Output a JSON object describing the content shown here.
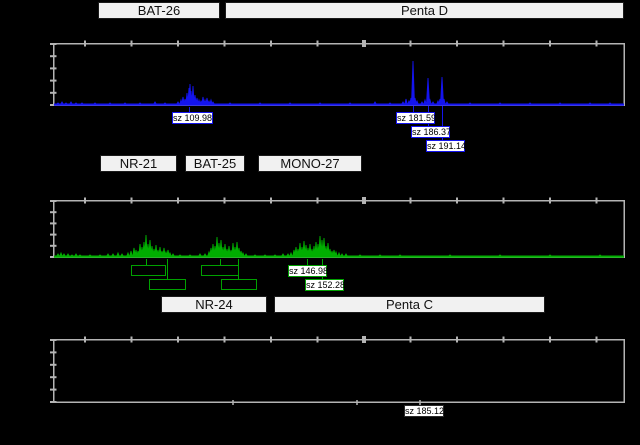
{
  "colors": {
    "background": "#000000",
    "panel_border": "#b4b4b4",
    "trace_blue": "#1414ee",
    "trace_green": "#00ae00",
    "marker_box_bg": "#f1f1f1",
    "marker_box_border": "#1b1b1b",
    "size_label_bg": "#ffffff",
    "size_label_text": "#000000"
  },
  "markers": {
    "row1": [
      {
        "label": "BAT-26"
      },
      {
        "label": "Penta D"
      }
    ],
    "row2": [
      {
        "label": "NR-21"
      },
      {
        "label": "BAT-25"
      },
      {
        "label": "MONO-27"
      }
    ],
    "row3": [
      {
        "label": "NR-24"
      },
      {
        "label": "Penta C"
      }
    ]
  },
  "sizes": {
    "top": [
      {
        "text": "sz 109.98"
      },
      {
        "text": "sz 181.59"
      },
      {
        "text": "sz 186.37"
      },
      {
        "text": "sz 191.14"
      }
    ],
    "middle": [
      {
        "text": "sz 146.98"
      },
      {
        "text": "sz 152.28"
      }
    ],
    "bottom": [
      {
        "text": "sz 185.12"
      }
    ]
  },
  "chart_data": [
    {
      "type": "area",
      "name": "electropherogram-top-blue",
      "color": "#1414ee",
      "has_trace": true,
      "size_calls": [
        109.98,
        181.59,
        186.37,
        191.14
      ],
      "peaks": [
        [
          58,
          1
        ],
        [
          62,
          2
        ],
        [
          66,
          1
        ],
        [
          71,
          2
        ],
        [
          76,
          1
        ],
        [
          82,
          1
        ],
        [
          95,
          1
        ],
        [
          110,
          1
        ],
        [
          125,
          1
        ],
        [
          140,
          1
        ],
        [
          155,
          2
        ],
        [
          165,
          1
        ],
        [
          178,
          2
        ],
        [
          181,
          4
        ],
        [
          183,
          7
        ],
        [
          185,
          5
        ],
        [
          187,
          11
        ],
        [
          189,
          16
        ],
        [
          190,
          20
        ],
        [
          191,
          13
        ],
        [
          193,
          18
        ],
        [
          195,
          9
        ],
        [
          197,
          6
        ],
        [
          199,
          4
        ],
        [
          201,
          3
        ],
        [
          203,
          7
        ],
        [
          205,
          4
        ],
        [
          207,
          6
        ],
        [
          209,
          3
        ],
        [
          211,
          4
        ],
        [
          213,
          2
        ],
        [
          230,
          1
        ],
        [
          260,
          1
        ],
        [
          290,
          1
        ],
        [
          320,
          1
        ],
        [
          350,
          1
        ],
        [
          375,
          2
        ],
        [
          390,
          1
        ],
        [
          403,
          2
        ],
        [
          406,
          5
        ],
        [
          409,
          3
        ],
        [
          411,
          6
        ],
        [
          413,
          43,
          3
        ],
        [
          415,
          6
        ],
        [
          417,
          3
        ],
        [
          422,
          2
        ],
        [
          425,
          4
        ],
        [
          428,
          26,
          3
        ],
        [
          430,
          4
        ],
        [
          433,
          2
        ],
        [
          438,
          3
        ],
        [
          440,
          5
        ],
        [
          442,
          27,
          3
        ],
        [
          444,
          5
        ],
        [
          447,
          2
        ],
        [
          470,
          1
        ],
        [
          500,
          1
        ],
        [
          530,
          1
        ],
        [
          560,
          1
        ],
        [
          590,
          1
        ],
        [
          610,
          1
        ]
      ]
    },
    {
      "type": "area",
      "name": "electropherogram-middle-green",
      "color": "#00ae00",
      "has_trace": true,
      "size_calls": [
        146.98,
        152.28
      ],
      "peaks": [
        [
          58,
          2
        ],
        [
          61,
          3
        ],
        [
          64,
          2
        ],
        [
          68,
          2
        ],
        [
          72,
          1
        ],
        [
          76,
          2
        ],
        [
          80,
          1
        ],
        [
          90,
          1
        ],
        [
          100,
          1
        ],
        [
          108,
          2
        ],
        [
          113,
          2
        ],
        [
          118,
          3
        ],
        [
          122,
          2
        ],
        [
          128,
          3
        ],
        [
          131,
          5
        ],
        [
          134,
          8
        ],
        [
          136,
          6
        ],
        [
          138,
          5
        ],
        [
          140,
          12
        ],
        [
          142,
          9
        ],
        [
          144,
          14
        ],
        [
          146,
          21
        ],
        [
          148,
          12
        ],
        [
          150,
          16
        ],
        [
          152,
          10
        ],
        [
          154,
          7
        ],
        [
          156,
          11
        ],
        [
          158,
          6
        ],
        [
          160,
          9
        ],
        [
          162,
          5
        ],
        [
          164,
          8
        ],
        [
          166,
          4
        ],
        [
          168,
          6
        ],
        [
          170,
          3
        ],
        [
          173,
          2
        ],
        [
          180,
          1
        ],
        [
          190,
          1
        ],
        [
          200,
          2
        ],
        [
          205,
          2
        ],
        [
          209,
          4
        ],
        [
          211,
          8
        ],
        [
          213,
          12
        ],
        [
          215,
          10
        ],
        [
          217,
          19
        ],
        [
          219,
          13
        ],
        [
          221,
          16
        ],
        [
          223,
          9
        ],
        [
          225,
          12
        ],
        [
          227,
          7
        ],
        [
          229,
          10
        ],
        [
          231,
          6
        ],
        [
          233,
          13
        ],
        [
          235,
          9
        ],
        [
          237,
          14
        ],
        [
          239,
          8
        ],
        [
          241,
          5
        ],
        [
          243,
          3
        ],
        [
          246,
          2
        ],
        [
          255,
          1
        ],
        [
          265,
          1
        ],
        [
          275,
          1
        ],
        [
          283,
          2
        ],
        [
          288,
          2
        ],
        [
          291,
          3
        ],
        [
          294,
          6
        ],
        [
          296,
          9
        ],
        [
          298,
          7
        ],
        [
          300,
          13
        ],
        [
          302,
          9
        ],
        [
          304,
          15
        ],
        [
          306,
          11
        ],
        [
          308,
          8
        ],
        [
          310,
          12
        ],
        [
          312,
          7
        ],
        [
          314,
          10
        ],
        [
          316,
          14
        ],
        [
          318,
          12
        ],
        [
          320,
          20
        ],
        [
          322,
          16
        ],
        [
          324,
          18
        ],
        [
          326,
          10
        ],
        [
          328,
          13
        ],
        [
          330,
          7
        ],
        [
          332,
          5
        ],
        [
          334,
          6
        ],
        [
          336,
          4
        ],
        [
          339,
          3
        ],
        [
          342,
          2
        ],
        [
          346,
          2
        ],
        [
          360,
          1
        ],
        [
          380,
          1
        ],
        [
          400,
          1
        ],
        [
          450,
          1
        ],
        [
          500,
          1
        ],
        [
          550,
          1
        ],
        [
          600,
          1
        ]
      ]
    },
    {
      "type": "area",
      "name": "electropherogram-bottom-empty",
      "color": "#b4b4b4",
      "has_trace": false,
      "size_calls": [
        185.12
      ],
      "peaks": []
    }
  ]
}
